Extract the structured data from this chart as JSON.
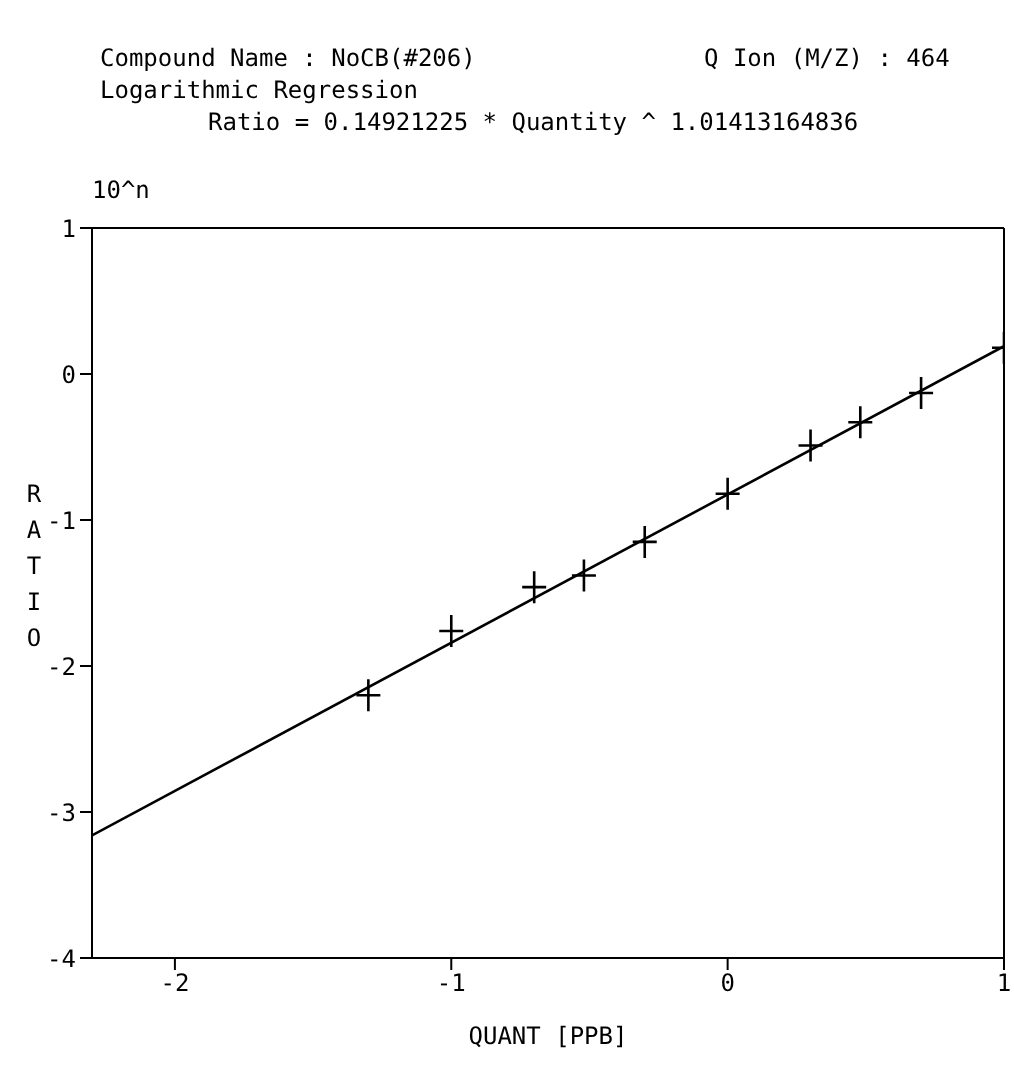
{
  "chart_data": {
    "type": "scatter",
    "title": "Compound Name : NoCB(#206)",
    "subtitle": "Logarithmic Regression",
    "xlabel": "QUANT [PPB]",
    "ylabel": "RATIO",
    "annotations": [
      "Q Ion (M/Z) : 464",
      "Ratio = 0.14921225 * Quantity ^ 1.01413164836",
      "10^n"
    ],
    "series": [
      {
        "color": "#000000",
        "marker": "cross",
        "x": [
          -1.3,
          -1,
          -0.7,
          -0.52,
          -0.3,
          0,
          0.3,
          0.48,
          0.7,
          1
        ],
        "values": [
          -2.2,
          -1.76,
          -1.46,
          -1.38,
          -1.15,
          -0.82,
          -0.49,
          -0.33,
          -0.13,
          0.18
        ]
      },
      {
        "type": "line",
        "color": "#000000",
        "marker": "none",
        "line_style": "solid",
        "x": [
          -2.3,
          1
        ],
        "values": [
          -3.16,
          0.19
        ]
      }
    ],
    "xlim": [
      -2.3,
      1
    ],
    "xticks": [
      -2,
      -1,
      0,
      1
    ],
    "ylim": [
      -4,
      1
    ],
    "yticks": [
      -4,
      -3,
      -2,
      -1,
      0,
      1
    ]
  }
}
